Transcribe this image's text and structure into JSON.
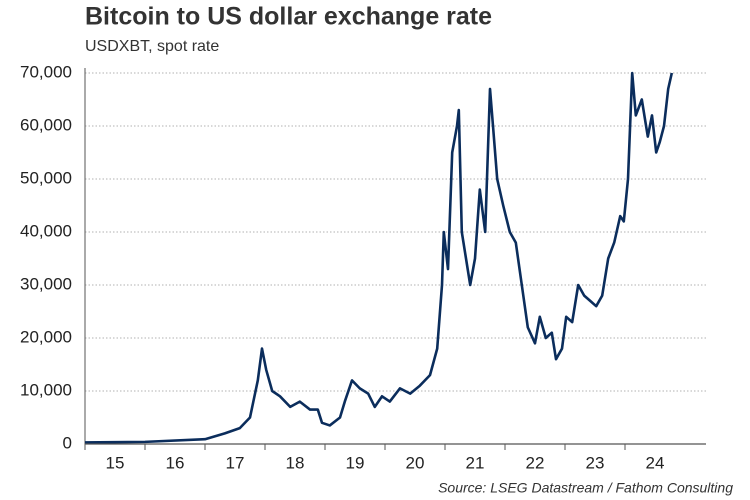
{
  "chart_data": {
    "type": "line",
    "title": "Bitcoin to US dollar exchange rate",
    "subtitle": "USDXBT, spot rate",
    "source": "Source: LSEG Datastream / Fathom Consulting",
    "xlim": [
      15,
      25.35
    ],
    "xticks": [
      {
        "value": 15.5,
        "label": "15"
      },
      {
        "value": 16.5,
        "label": "16"
      },
      {
        "value": 17.5,
        "label": "17"
      },
      {
        "value": 18.5,
        "label": "18"
      },
      {
        "value": 19.5,
        "label": "19"
      },
      {
        "value": 20.5,
        "label": "20"
      },
      {
        "value": 21.5,
        "label": "21"
      },
      {
        "value": 22.5,
        "label": "22"
      },
      {
        "value": 23.5,
        "label": "23"
      },
      {
        "value": 24.5,
        "label": "24"
      }
    ],
    "ylim": [
      0,
      70000
    ],
    "yticks": [
      0,
      {
        "value": 10000,
        "label": "10,000"
      },
      {
        "value": 20000,
        "label": "20,000"
      },
      {
        "value": 30000,
        "label": "30,000"
      },
      {
        "value": 40000,
        "label": "40,000"
      },
      {
        "value": 50000,
        "label": "50,000"
      },
      {
        "value": 60000,
        "label": "60,000"
      },
      {
        "value": 70000,
        "label": "70,000"
      }
    ],
    "grid": true,
    "series": [
      {
        "name": "USDXBT",
        "color": "#0b2d5c",
        "x": [
          15.0,
          16.0,
          17.0,
          17.33,
          17.58,
          17.75,
          17.88,
          17.95,
          18.02,
          18.12,
          18.25,
          18.42,
          18.58,
          18.75,
          18.88,
          18.95,
          19.08,
          19.25,
          19.33,
          19.45,
          19.58,
          19.72,
          19.83,
          19.95,
          20.08,
          20.25,
          20.42,
          20.58,
          20.75,
          20.87,
          20.95,
          20.98,
          21.05,
          21.12,
          21.2,
          21.23,
          21.28,
          21.35,
          21.42,
          21.5,
          21.58,
          21.67,
          21.75,
          21.8,
          21.87,
          21.97,
          22.08,
          22.18,
          22.28,
          22.38,
          22.5,
          22.58,
          22.68,
          22.78,
          22.85,
          22.95,
          23.02,
          23.12,
          23.22,
          23.32,
          23.42,
          23.52,
          23.62,
          23.72,
          23.82,
          23.92,
          23.98,
          24.05,
          24.12,
          24.18,
          24.28,
          24.38,
          24.45,
          24.52,
          24.58,
          24.65,
          24.72,
          24.78
        ],
        "values": [
          300,
          400,
          900,
          2000,
          3000,
          5000,
          12000,
          18000,
          14000,
          10000,
          9000,
          7000,
          8000,
          6500,
          6500,
          4000,
          3500,
          5000,
          8000,
          12000,
          10500,
          9500,
          7000,
          9000,
          8000,
          10500,
          9500,
          11000,
          13000,
          18000,
          30000,
          40000,
          33000,
          55000,
          60000,
          63000,
          40000,
          35000,
          30000,
          35000,
          48000,
          40000,
          67000,
          60000,
          50000,
          45000,
          40000,
          38000,
          30000,
          22000,
          19000,
          24000,
          20000,
          21000,
          16000,
          18000,
          24000,
          23000,
          30000,
          28000,
          27000,
          26000,
          28000,
          35000,
          38000,
          43000,
          42000,
          50000,
          70000,
          62000,
          65000,
          58000,
          62000,
          55000,
          57000,
          60000,
          67000,
          70000
        ]
      }
    ]
  }
}
